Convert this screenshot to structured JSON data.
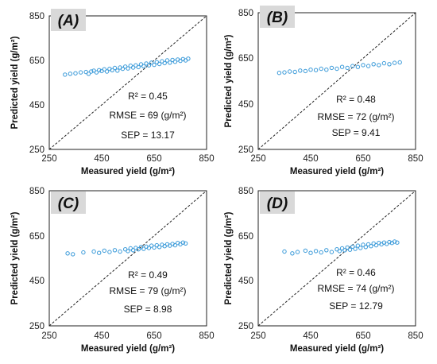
{
  "chart_data": [
    {
      "panel_label": "(A)",
      "type": "scatter",
      "xlabel": "Measured yield (g/m²)",
      "ylabel": "Predicted yield (g/m²)",
      "xlim": [
        250,
        850
      ],
      "ylim": [
        250,
        850
      ],
      "xticks": [
        "250",
        "450",
        "650",
        "850"
      ],
      "yticks": [
        "250",
        "450",
        "650",
        "850"
      ],
      "reference_line": "1:1",
      "stats": [
        "R² = 0.45",
        "RMSE = 69 (g/m²)",
        "SEP = 13.17"
      ],
      "point_color": "#3a9ad9",
      "points": [
        [
          310,
          586
        ],
        [
          330,
          590
        ],
        [
          350,
          592
        ],
        [
          370,
          596
        ],
        [
          390,
          598
        ],
        [
          400,
          590
        ],
        [
          410,
          600
        ],
        [
          420,
          604
        ],
        [
          430,
          596
        ],
        [
          440,
          606
        ],
        [
          450,
          602
        ],
        [
          460,
          610
        ],
        [
          470,
          600
        ],
        [
          480,
          612
        ],
        [
          490,
          606
        ],
        [
          500,
          616
        ],
        [
          510,
          604
        ],
        [
          520,
          618
        ],
        [
          530,
          612
        ],
        [
          540,
          622
        ],
        [
          550,
          614
        ],
        [
          560,
          626
        ],
        [
          570,
          618
        ],
        [
          580,
          628
        ],
        [
          590,
          620
        ],
        [
          600,
          632
        ],
        [
          610,
          624
        ],
        [
          620,
          636
        ],
        [
          630,
          628
        ],
        [
          640,
          640
        ],
        [
          650,
          630
        ],
        [
          660,
          642
        ],
        [
          670,
          634
        ],
        [
          680,
          646
        ],
        [
          690,
          638
        ],
        [
          700,
          650
        ],
        [
          710,
          640
        ],
        [
          720,
          652
        ],
        [
          730,
          644
        ],
        [
          740,
          654
        ],
        [
          750,
          648
        ],
        [
          760,
          656
        ],
        [
          770,
          650
        ],
        [
          780,
          658
        ]
      ]
    },
    {
      "panel_label": "(B)",
      "type": "scatter",
      "xlabel": "Measured yield (g/m²)",
      "ylabel": "Predicted yield (g/m²)",
      "xlim": [
        250,
        850
      ],
      "ylim": [
        250,
        850
      ],
      "xticks": [
        "250",
        "450",
        "650",
        "850"
      ],
      "yticks": [
        "250",
        "450",
        "650",
        "850"
      ],
      "reference_line": "1:1",
      "stats": [
        "R² = 0.48",
        "RMSE = 72 (g/m²)",
        "SEP = 9.41"
      ],
      "point_color": "#3a9ad9",
      "points": [
        [
          330,
          586
        ],
        [
          350,
          588
        ],
        [
          370,
          592
        ],
        [
          390,
          590
        ],
        [
          410,
          596
        ],
        [
          430,
          594
        ],
        [
          450,
          600
        ],
        [
          470,
          598
        ],
        [
          490,
          604
        ],
        [
          510,
          600
        ],
        [
          530,
          608
        ],
        [
          550,
          604
        ],
        [
          570,
          612
        ],
        [
          590,
          608
        ],
        [
          610,
          616
        ],
        [
          630,
          612
        ],
        [
          650,
          620
        ],
        [
          670,
          616
        ],
        [
          690,
          624
        ],
        [
          710,
          620
        ],
        [
          730,
          628
        ],
        [
          750,
          624
        ],
        [
          770,
          630
        ],
        [
          790,
          632
        ]
      ]
    },
    {
      "panel_label": "(C)",
      "type": "scatter",
      "xlabel": "Measured yield (g/m²)",
      "ylabel": "Predicted yield (g/m²)",
      "xlim": [
        250,
        850
      ],
      "ylim": [
        250,
        850
      ],
      "xticks": [
        "250",
        "450",
        "650",
        "850"
      ],
      "yticks": [
        "250",
        "450",
        "650",
        "850"
      ],
      "reference_line": "1:1",
      "stats": [
        "R² = 0.49",
        "RMSE = 79 (g/m²)",
        "SEP = 8.98"
      ],
      "point_color": "#3a9ad9",
      "points": [
        [
          320,
          572
        ],
        [
          340,
          568
        ],
        [
          380,
          576
        ],
        [
          420,
          580
        ],
        [
          440,
          574
        ],
        [
          460,
          584
        ],
        [
          480,
          578
        ],
        [
          500,
          586
        ],
        [
          520,
          580
        ],
        [
          540,
          590
        ],
        [
          550,
          582
        ],
        [
          560,
          594
        ],
        [
          570,
          586
        ],
        [
          580,
          596
        ],
        [
          590,
          590
        ],
        [
          600,
          600
        ],
        [
          610,
          592
        ],
        [
          620,
          602
        ],
        [
          630,
          596
        ],
        [
          640,
          606
        ],
        [
          650,
          598
        ],
        [
          660,
          608
        ],
        [
          670,
          600
        ],
        [
          680,
          610
        ],
        [
          690,
          604
        ],
        [
          700,
          612
        ],
        [
          710,
          606
        ],
        [
          720,
          614
        ],
        [
          730,
          608
        ],
        [
          740,
          618
        ],
        [
          750,
          612
        ],
        [
          760,
          620
        ],
        [
          770,
          616
        ]
      ]
    },
    {
      "panel_label": "(D)",
      "type": "scatter",
      "xlabel": "Measured yield (g/m²)",
      "ylabel": "Predicted yield (g/m²)",
      "xlim": [
        250,
        850
      ],
      "ylim": [
        250,
        850
      ],
      "xticks": [
        "250",
        "450",
        "650",
        "850"
      ],
      "yticks": [
        "250",
        "450",
        "650",
        "850"
      ],
      "reference_line": "1:1",
      "stats": [
        "R² = 0.46",
        "RMSE = 74 (g/m²)",
        "SEP = 12.79"
      ],
      "point_color": "#3a9ad9",
      "points": [
        [
          350,
          580
        ],
        [
          380,
          572
        ],
        [
          400,
          578
        ],
        [
          430,
          584
        ],
        [
          450,
          574
        ],
        [
          470,
          582
        ],
        [
          490,
          576
        ],
        [
          510,
          586
        ],
        [
          530,
          578
        ],
        [
          550,
          590
        ],
        [
          560,
          582
        ],
        [
          570,
          594
        ],
        [
          580,
          586
        ],
        [
          590,
          598
        ],
        [
          600,
          588
        ],
        [
          610,
          602
        ],
        [
          620,
          592
        ],
        [
          630,
          606
        ],
        [
          640,
          596
        ],
        [
          650,
          610
        ],
        [
          660,
          600
        ],
        [
          670,
          612
        ],
        [
          680,
          604
        ],
        [
          690,
          616
        ],
        [
          700,
          608
        ],
        [
          710,
          618
        ],
        [
          720,
          612
        ],
        [
          730,
          620
        ],
        [
          740,
          614
        ],
        [
          750,
          622
        ],
        [
          760,
          618
        ],
        [
          770,
          624
        ],
        [
          780,
          620
        ]
      ]
    }
  ]
}
